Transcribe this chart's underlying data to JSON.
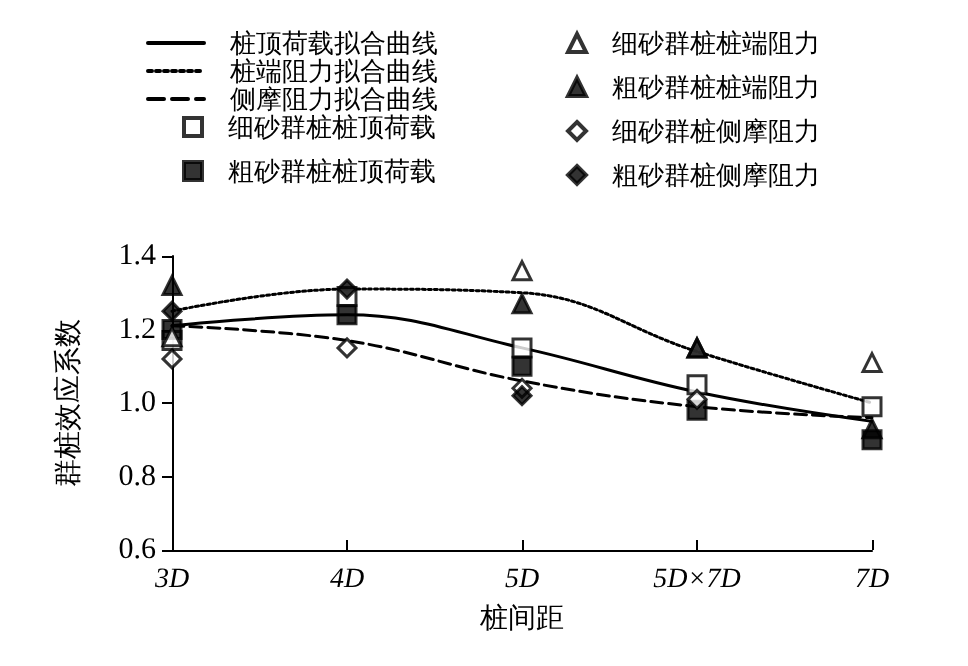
{
  "chart_data": {
    "type": "scatter",
    "xlabel": "桩间距",
    "ylabel": "群桩效应系数",
    "categories": [
      "3D",
      "4D",
      "5D",
      "5D×7D",
      "7D"
    ],
    "ylim": [
      0.6,
      1.4
    ],
    "yticks": [
      0.6,
      0.8,
      {
        "value": 1,
        "label": "1.0"
      },
      1.2,
      1.4
    ],
    "grid": false,
    "legend": "top",
    "series": [
      {
        "name": "桩顶荷载拟合曲线",
        "type": "line",
        "line_style": "solid",
        "marker": "none",
        "color": "#000000",
        "values": [
          1.21,
          1.24,
          1.15,
          1.03,
          0.95
        ]
      },
      {
        "name": "桩端阻力拟合曲线",
        "type": "line",
        "line_style": "dotted",
        "marker": "none",
        "color": "#000000",
        "values": [
          1.25,
          1.31,
          1.3,
          1.14,
          1.0
        ]
      },
      {
        "name": "侧摩阻力拟合曲线",
        "type": "line",
        "line_style": "dashed",
        "marker": "none",
        "color": "#000000",
        "values": [
          1.21,
          1.17,
          1.06,
          0.99,
          0.96
        ]
      },
      {
        "name": "细砂群桩桩顶荷载",
        "marker": "square",
        "color": "#ffffff",
        "values": [
          1.17,
          1.29,
          1.15,
          1.05,
          0.99
        ]
      },
      {
        "name": "粗砂群桩桩顶荷载",
        "marker": "square",
        "color": "#000000",
        "values": [
          1.2,
          1.24,
          1.1,
          0.98,
          0.9
        ]
      },
      {
        "name": "细砂群桩桩端阻力",
        "marker": "triangle",
        "color": "#ffffff",
        "values": [
          1.18,
          null,
          1.36,
          1.15,
          1.11
        ]
      },
      {
        "name": "粗砂群桩桩端阻力",
        "marker": "triangle",
        "color": "#000000",
        "values": [
          1.32,
          null,
          1.27,
          1.15,
          0.93
        ]
      },
      {
        "name": "细砂群桩侧摩阻力",
        "marker": "diamond",
        "color": "#ffffff",
        "values": [
          1.12,
          1.15,
          1.04,
          1.01,
          null
        ]
      },
      {
        "name": "粗砂群桩侧摩阻力",
        "marker": "diamond",
        "color": "#000000",
        "values": [
          1.25,
          1.31,
          1.02,
          null,
          null
        ]
      }
    ]
  }
}
